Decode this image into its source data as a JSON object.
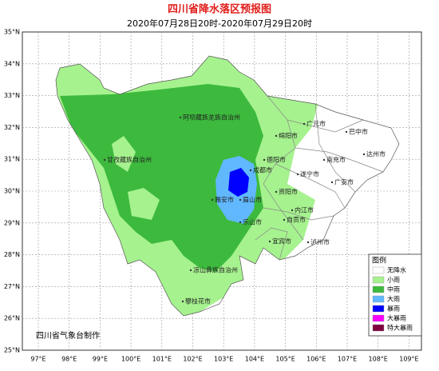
{
  "header": {
    "title": "四川省降水落区预报图",
    "subtitle": "2020年07月28日20时-2020年07月29日20时"
  },
  "map": {
    "lat_labels": [
      "35°N",
      "34°N",
      "33°N",
      "32°N",
      "31°N",
      "30°N",
      "29°N",
      "28°N",
      "27°N",
      "26°N",
      "25°N"
    ],
    "lon_labels": [
      "97°E",
      "98°E",
      "99°E",
      "100°E",
      "101°E",
      "102°E",
      "103°E",
      "104°E",
      "105°E",
      "106°E",
      "107°E",
      "108°E",
      "109°E"
    ],
    "places": [
      "阿坝藏族羌族自治州",
      "甘孜藏族自治州",
      "广元市",
      "巴中市",
      "绵阳市",
      "达州市",
      "德阳市",
      "南充市",
      "成都市",
      "遂宁市",
      "广安市",
      "雅安市",
      "眉山市",
      "资阳市",
      "内江市",
      "乐山市",
      "自贡市",
      "宜宾市",
      "泸州市",
      "凉山彝族自治州",
      "攀枝花市"
    ]
  },
  "legend": {
    "title": "图例",
    "items": [
      {
        "label": "无降水",
        "color": "#ffffff"
      },
      {
        "label": "小雨",
        "color": "#a6f28f"
      },
      {
        "label": "中雨",
        "color": "#3dba3d"
      },
      {
        "label": "大雨",
        "color": "#61b8ff"
      },
      {
        "label": "暴雨",
        "color": "#0000fe"
      },
      {
        "label": "大暴雨",
        "color": "#fa00fa"
      },
      {
        "label": "特大暴雨",
        "color": "#800040"
      }
    ]
  },
  "credit": "四川省气象台制作"
}
